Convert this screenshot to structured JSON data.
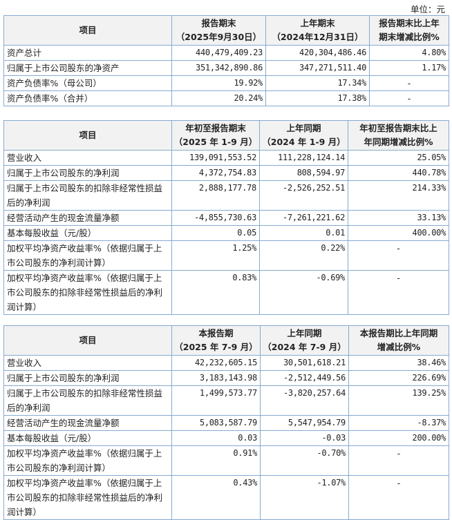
{
  "unit_label": "单位：元",
  "tables": [
    {
      "headers": [
        [
          "项目"
        ],
        [
          "报告期末",
          "（2025年9月30日）"
        ],
        [
          "上年期末",
          "（2024年12月31日）"
        ],
        [
          "报告期末比上年",
          "期末增减比例%"
        ]
      ],
      "rows": [
        [
          "资产总计",
          "440,479,409.23",
          "420,304,486.46",
          "4.80%"
        ],
        [
          "归属于上市公司股东的净资产",
          "351,342,890.86",
          "347,271,511.40",
          "1.17%"
        ],
        [
          "资产负债率%（母公司）",
          "19.92%",
          "17.34%",
          "-"
        ],
        [
          "资产负债率%（合并）",
          "20.24%",
          "17.38%",
          "-"
        ]
      ]
    },
    {
      "headers": [
        [
          "项目"
        ],
        [
          "年初至报告期末",
          "（2025 年 1-9 月）"
        ],
        [
          "上年同期",
          "（2024 年 1-9 月）"
        ],
        [
          "年初至报告期末比上",
          "年同期增减比例%"
        ]
      ],
      "rows": [
        [
          "营业收入",
          "139,091,553.52",
          "111,228,124.14",
          "25.05%"
        ],
        [
          "归属于上市公司股东的净利润",
          "4,372,754.83",
          "808,594.97",
          "440.78%"
        ],
        [
          "归属于上市公司股东的扣除非经常性损益后的净利润",
          "2,888,177.78",
          "-2,526,252.51",
          "214.33%"
        ],
        [
          "经营活动产生的现金流量净额",
          "-4,855,730.63",
          "-7,261,221.62",
          "33.13%"
        ],
        [
          "基本每股收益（元/股）",
          "0.05",
          "0.01",
          "400.00%"
        ],
        [
          "加权平均净资产收益率%（依据归属于上市公司股东的净利润计算）",
          "1.25%",
          "0.22%",
          "-"
        ],
        [
          "加权平均净资产收益率%（依据归属于上市公司股东的扣除非经常性损益后的净利润计算）",
          "0.83%",
          "-0.69%",
          "-"
        ]
      ]
    },
    {
      "headers": [
        [
          "项目"
        ],
        [
          "本报告期",
          "（2025 年 7-9 月）"
        ],
        [
          "上年同期",
          "（2024 年 7-9 月）"
        ],
        [
          "本报告期比上年同期",
          "增减比例%"
        ]
      ],
      "rows": [
        [
          "营业收入",
          "42,232,605.15",
          "30,501,618.21",
          "38.46%"
        ],
        [
          "归属于上市公司股东的净利润",
          "3,183,143.98",
          "-2,512,449.56",
          "226.69%"
        ],
        [
          "归属于上市公司股东的扣除非经常性损益后的净利润",
          "1,499,573.77",
          "-3,820,257.64",
          "139.25%"
        ],
        [
          "经营活动产生的现金流量净额",
          "5,083,587.79",
          "5,547,954.79",
          "-8.37%"
        ],
        [
          "基本每股收益（元/股）",
          "0.03",
          "-0.03",
          "200.00%"
        ],
        [
          "加权平均净资产收益率%（依据归属于上市公司股东的净利润计算）",
          "0.91%",
          "-0.70%",
          "-"
        ],
        [
          "加权平均净资产收益率%（依据归属于上市公司股东的扣除非经常性损益后的净利润计算）",
          "0.43%",
          "-1.07%",
          "-"
        ]
      ]
    }
  ]
}
